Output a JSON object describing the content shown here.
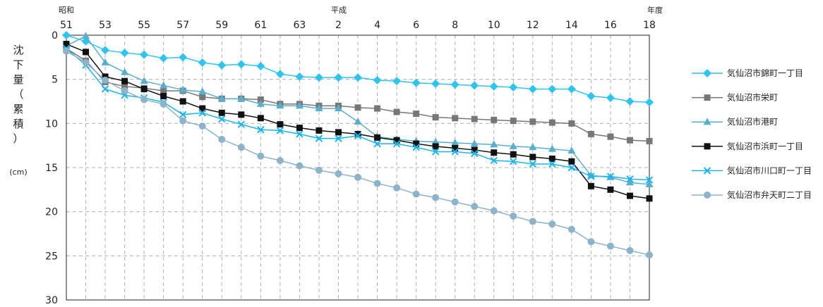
{
  "chart_data": {
    "type": "line",
    "era_labels": {
      "showa": "昭和",
      "heisei": "平成",
      "nendo": "年度"
    },
    "ylabel": "沈下量（累積）",
    "ylabel_chars": [
      "沈",
      "下",
      "量",
      "（",
      "累",
      "積",
      "）"
    ],
    "unit": "(cm)",
    "x_ticks": [
      "51",
      "53",
      "55",
      "57",
      "59",
      "61",
      "63",
      "2",
      "4",
      "6",
      "8",
      "10",
      "12",
      "14",
      "16",
      "18"
    ],
    "x_count": 31,
    "y_ticks": [
      0,
      5,
      10,
      15,
      20,
      25,
      30
    ],
    "ylim": [
      0,
      30
    ],
    "y_inverted": true,
    "grid": true,
    "legend_position": "right",
    "series": [
      {
        "name": "気仙沼市錦町一丁目",
        "color": "#2ec4ef",
        "marker": "diamond",
        "values": [
          0,
          0.7,
          1.7,
          2.0,
          2.2,
          2.6,
          2.5,
          3.1,
          3.4,
          3.3,
          3.5,
          4.4,
          4.7,
          4.8,
          4.8,
          4.8,
          5.1,
          5.2,
          5.4,
          5.5,
          5.6,
          5.7,
          5.8,
          5.9,
          6.1,
          6.1,
          6.1,
          6.9,
          7.1,
          7.5,
          7.6
        ]
      },
      {
        "name": "気仙沼市栄町",
        "color": "#777777",
        "marker": "square",
        "values": [
          1.5,
          2.9,
          5.3,
          5.8,
          6.0,
          6.3,
          6.3,
          7.0,
          7.2,
          7.2,
          7.3,
          7.8,
          7.8,
          8.0,
          8.0,
          8.2,
          8.3,
          8.7,
          8.9,
          9.3,
          9.4,
          9.5,
          9.6,
          9.7,
          9.8,
          9.9,
          10.0,
          11.2,
          11.5,
          11.9,
          12.0
        ]
      },
      {
        "name": "気仙沼市港町",
        "color": "#5aaecd",
        "marker": "triangle",
        "values": [
          1.2,
          0.1,
          3.1,
          4.2,
          5.2,
          5.7,
          6.2,
          6.4,
          7.2,
          7.2,
          7.8,
          8.0,
          8.0,
          8.3,
          8.3,
          9.8,
          11.5,
          11.8,
          12.0,
          12.1,
          12.2,
          12.3,
          12.4,
          12.6,
          12.7,
          12.9,
          13.1,
          15.9,
          16.1,
          16.7,
          16.9
        ]
      },
      {
        "name": "気仙沼市浜町一丁目",
        "color": "#111111",
        "marker": "square",
        "values": [
          1.0,
          1.9,
          4.7,
          5.2,
          6.1,
          6.9,
          7.5,
          8.3,
          8.8,
          9.0,
          9.4,
          10.1,
          10.5,
          10.8,
          11.0,
          11.2,
          11.6,
          11.9,
          12.3,
          12.6,
          12.8,
          13.0,
          13.3,
          13.5,
          13.8,
          14.0,
          14.3,
          17.1,
          17.5,
          18.2,
          18.5
        ]
      },
      {
        "name": "気仙沼市川口町一丁目",
        "color": "#1cb4ea",
        "marker": "cross",
        "values": [
          1.5,
          3.4,
          6.1,
          6.8,
          7.1,
          7.6,
          9.0,
          8.8,
          9.5,
          10.1,
          10.7,
          10.8,
          11.2,
          11.7,
          11.7,
          11.4,
          12.3,
          12.3,
          12.7,
          13.2,
          13.2,
          13.4,
          14.2,
          14.3,
          14.6,
          14.6,
          15.0,
          16.0,
          16.0,
          16.3,
          16.4
        ]
      },
      {
        "name": "気仙沼市弁天町二丁目",
        "color": "#8db3c8",
        "marker": "circle",
        "values": [
          1.8,
          3.1,
          5.1,
          6.3,
          7.3,
          7.8,
          9.7,
          10.3,
          11.8,
          12.7,
          13.7,
          14.2,
          14.8,
          15.3,
          15.7,
          16.1,
          16.8,
          17.3,
          18.0,
          18.4,
          18.9,
          19.4,
          19.9,
          20.5,
          21.1,
          21.4,
          22.0,
          23.4,
          23.9,
          24.4,
          24.9
        ]
      }
    ]
  }
}
